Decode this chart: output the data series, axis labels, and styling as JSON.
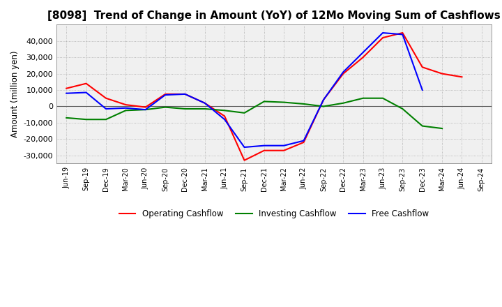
{
  "title": "[8098]  Trend of Change in Amount (YoY) of 12Mo Moving Sum of Cashflows",
  "ylabel": "Amount (million yen)",
  "x_labels": [
    "Jun-19",
    "Sep-19",
    "Dec-19",
    "Mar-20",
    "Jun-20",
    "Sep-20",
    "Dec-20",
    "Mar-21",
    "Jun-21",
    "Sep-21",
    "Dec-21",
    "Mar-22",
    "Jun-22",
    "Sep-22",
    "Dec-22",
    "Mar-23",
    "Jun-23",
    "Sep-23",
    "Dec-23",
    "Mar-24",
    "Jun-24",
    "Sep-24"
  ],
  "operating": [
    11000,
    14000,
    5000,
    1000,
    -500,
    7500,
    7500,
    2000,
    -6000,
    -33000,
    -27000,
    -27000,
    -22000,
    4000,
    20000,
    30000,
    42000,
    45000,
    24000,
    20000,
    18000,
    null
  ],
  "investing": [
    -7000,
    -8000,
    -8000,
    -2500,
    -2000,
    -500,
    -1500,
    -1500,
    -2500,
    -4000,
    3000,
    2500,
    1500,
    0,
    2000,
    5000,
    5000,
    -1500,
    -12000,
    -13500,
    null,
    null
  ],
  "free": [
    8000,
    8500,
    -1500,
    -1000,
    -2000,
    7000,
    7500,
    2000,
    -8000,
    -25000,
    -24000,
    -24000,
    -21000,
    4000,
    21000,
    33000,
    45000,
    44000,
    10000,
    null,
    null,
    null
  ],
  "operating_color": "#ff0000",
  "investing_color": "#008000",
  "free_color": "#0000ff",
  "ylim_min": -35000,
  "ylim_max": 50000,
  "yticks": [
    -30000,
    -20000,
    -10000,
    0,
    10000,
    20000,
    30000,
    40000
  ],
  "background_color": "#f0f0f0",
  "grid_color": "#aaaaaa",
  "title_fontsize": 11,
  "legend_labels": [
    "Operating Cashflow",
    "Investing Cashflow",
    "Free Cashflow"
  ],
  "linewidth": 1.5
}
